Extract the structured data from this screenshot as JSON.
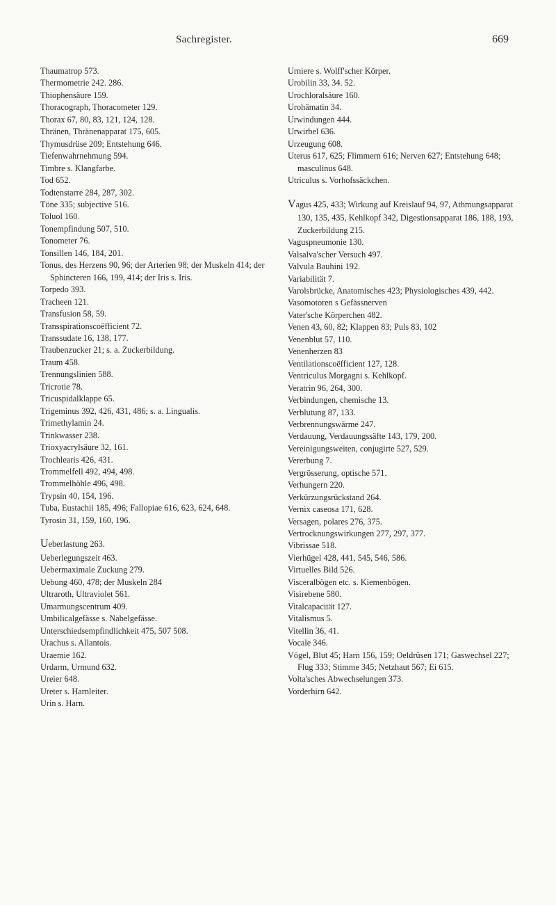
{
  "header": {
    "title": "Sachregister.",
    "page": "669"
  },
  "left_column": [
    "Thaumatrop 573.",
    "Thermometrie 242. 286.",
    "Thiophensäure 159.",
    "Thoracograph, Thoracometer 129.",
    "Thorax 67, 80, 83, 121, 124, 128.",
    "Thränen, Thränenapparat 175, 605.",
    "Thymusdrüse 209; Entstehung 646.",
    "Tiefenwahrnehmung 594.",
    "Timbre s. Klangfarbe.",
    "Tod 652.",
    "Todtenstarre 284, 287, 302.",
    "Töne 335; subjective 516.",
    "Toluol 160.",
    "Tonempfindung 507, 510.",
    "Tonometer 76.",
    "Tonsillen 146, 184, 201.",
    "Tonus, des Herzens 90, 96; der Arterien 98; der Muskeln 414; der Sphincteren 166, 199, 414; der Iris s. Iris.",
    "Torpedo 393.",
    "Tracheen 121.",
    "Transfusion 58, 59.",
    "Transspirationscoëfficient 72.",
    "Transsudate 16, 138, 177.",
    "Traubenzucker 21; s. a. Zuckerbildung.",
    "Traum 458.",
    "Trennungslinien 588.",
    "Tricrotie 78.",
    "Tricuspidalklappe 65.",
    "Trigeminus 392, 426, 431, 486; s. a. Lingualis.",
    "Trimethylamin 24.",
    "Trinkwasser 238.",
    "Trioxyacrylsäure 32, 161.",
    "Trochlearis 426, 431.",
    "Trommelfell 492, 494, 498.",
    "Trommelhöhle 496, 498.",
    "Trypsin 40, 154, 196.",
    "Tuba, Eustachii 185, 496; Fallopiae 616, 623, 624, 648.",
    "Tyrosin 31, 159, 160, 196."
  ],
  "left_column_u": [
    "Ueberlastung 263.",
    "Ueberlegungszeit 463.",
    "Uebermaximale Zuckung 279.",
    "Uebung 460, 478; der Muskeln 284",
    "Ultraroth, Ultraviolet 561.",
    "Umarmungscentrum 409.",
    "Umbilicalgefässe s. Nabelgefässe.",
    "Unterschiedsempfindlichkeit 475, 507 508.",
    "Urachus s. Allantois.",
    "Uraemie 162.",
    "Urdarm, Urmund 632.",
    "Ureier 648.",
    "Ureter s. Harnleiter.",
    "Urin s. Harn."
  ],
  "right_column_top": [
    "Urniere s. Wolff'scher Körper.",
    "Urobilin 33, 34. 52.",
    "Urochloralsäure 160.",
    "Urohämatin 34.",
    "Urwindungen 444.",
    "Urwirbel 636.",
    "Urzeugung 608.",
    "Uterus 617, 625; Flimmern 616; Nerven 627; Entstehung 648; masculinus 648.",
    "Utriculus s. Vorhofssäckchen."
  ],
  "right_column_v": [
    "Vagus 425, 433; Wirkung auf Kreislauf 94, 97, Athmungsapparat 130, 135, 435, Kehlkopf 342, Digestionsapparat 186, 188, 193, Zuckerbildung 215.",
    "Vaguspneumonie 130.",
    "Valsalva'scher Versuch 497.",
    "Valvula Bauhini 192.",
    "Variabilität 7.",
    "Varolsbrücke, Anatomisches 423; Physiologisches 439, 442.",
    "Vasomotoren s Gefässnerven",
    "Vater'sche Körperchen 482.",
    "Venen 43, 60, 82; Klappen 83; Puls 83, 102",
    "Venenblut 57, 110.",
    "Venenherzen 83",
    "Ventilationscoëfficient 127, 128.",
    "Ventriculus Morgagni s. Kehlkopf.",
    "Veratrin 96, 264, 300.",
    "Verbindungen, chemische 13.",
    "Verblutung 87, 133.",
    "Verbrennungswärme 247.",
    "Verdauung, Verdauungssäfte 143, 179, 200.",
    "Vereinigungsweiten, conjugirte 527, 529.",
    "Vererbung 7.",
    "Vergrösserung, optische 571.",
    "Verhungern 220.",
    "Verkürzungsrückstand 264.",
    "Vernix caseosa 171, 628.",
    "Versagen, polares 276, 375.",
    "Vertrocknungswirkungen 277, 297, 377.",
    "Vibrissae 518.",
    "Vierhügel 428, 441, 545, 546, 586.",
    "Virtuelles Bild 526.",
    "Visceralbögen etc. s. Kiemenbögen.",
    "Visirebene 580.",
    "Vitalcapacität 127.",
    "Vitalismus 5.",
    "Vitellin 36, 41.",
    "Vocale 346.",
    "Vögel, Blut 45; Harn 156, 159; Oeldrüsen 171; Gaswechsel 227; Flug 333; Stimme 345; Netzhaut 567; Ei 615.",
    "Volta'sches Abwechselungen 373.",
    "Vorderhirn 642."
  ],
  "u_prefix": "U",
  "v_prefix": "V"
}
